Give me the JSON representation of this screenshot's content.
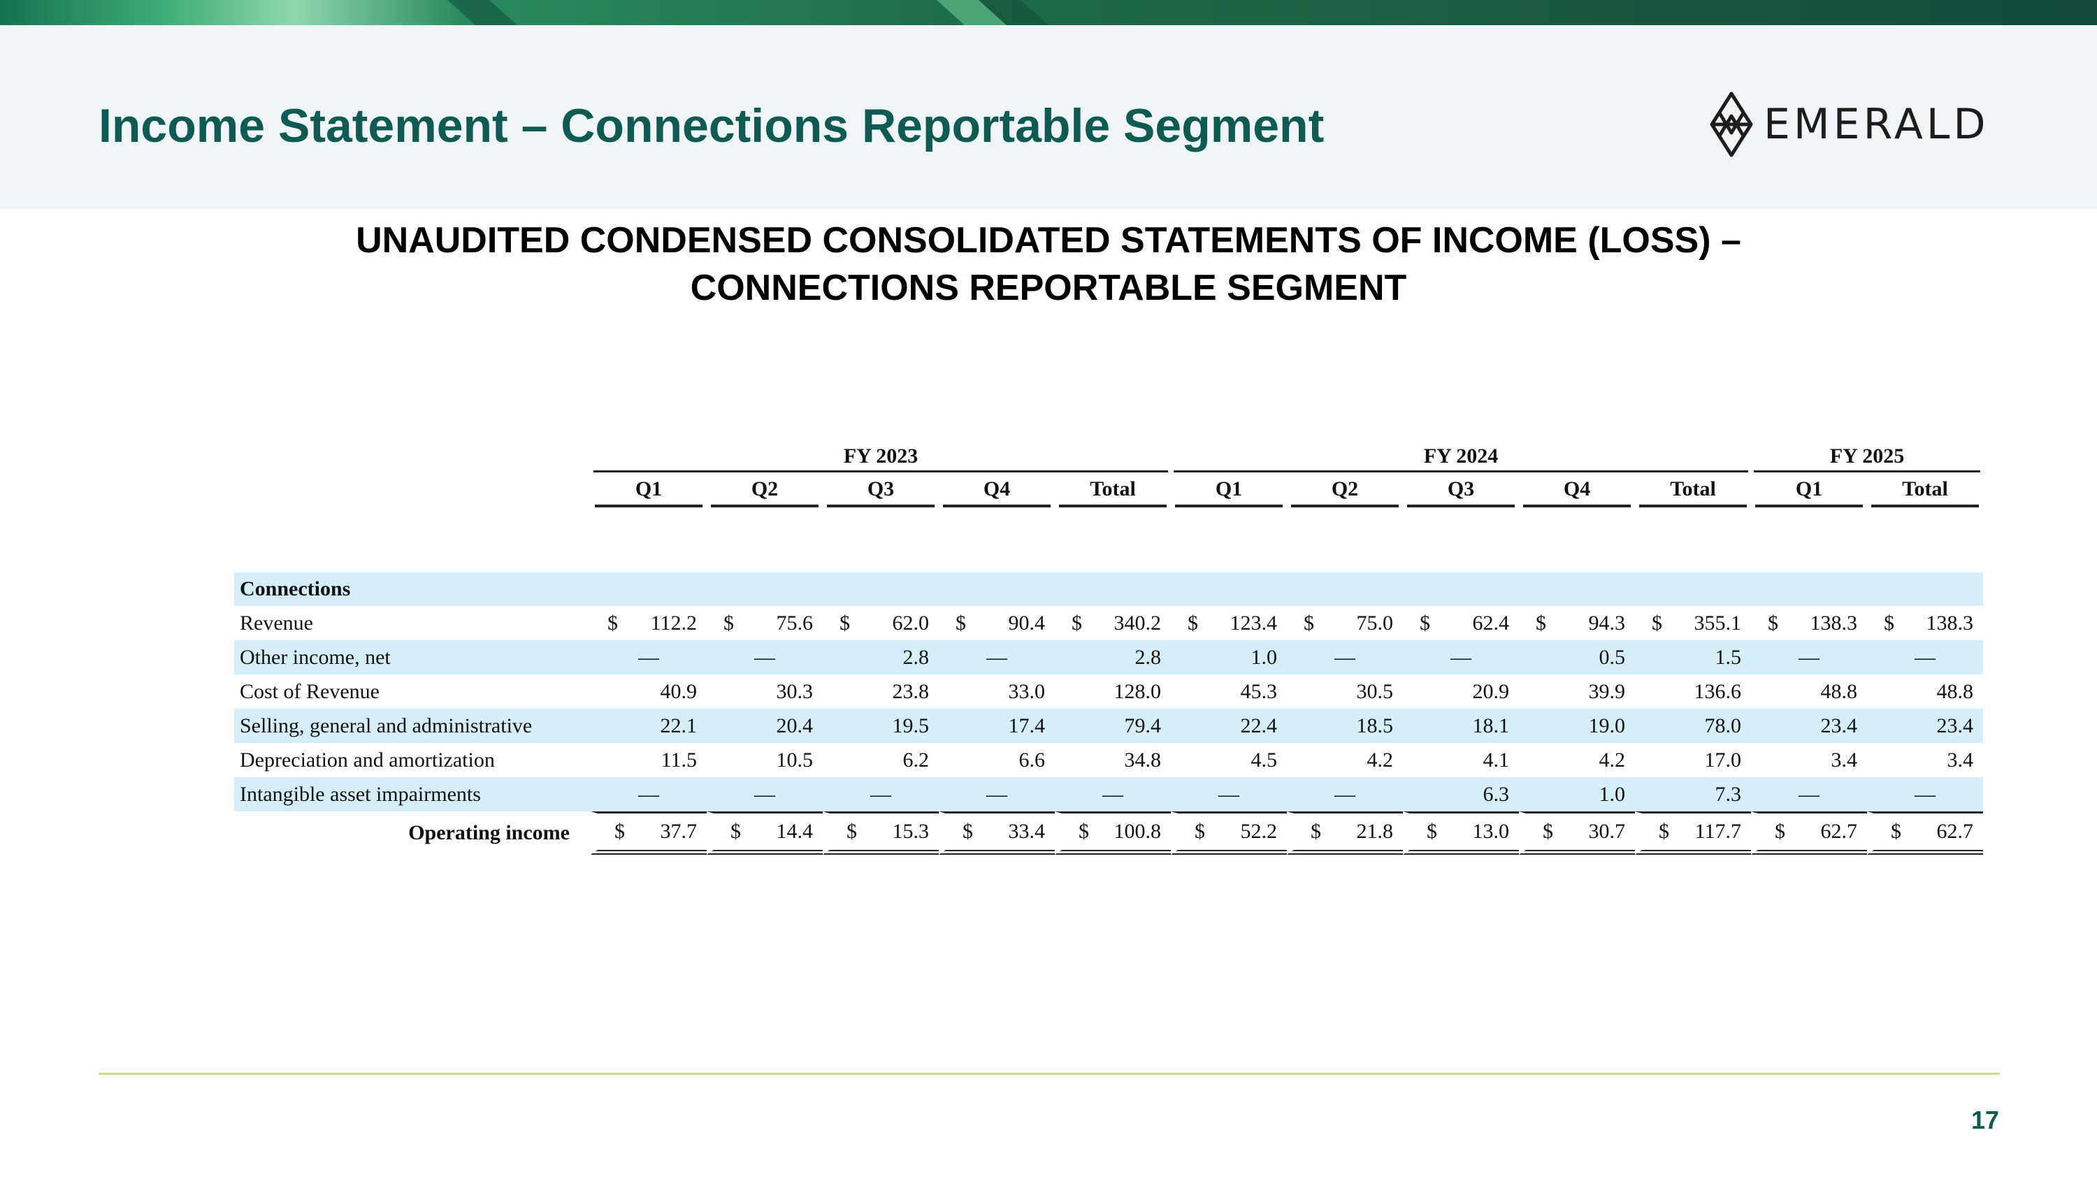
{
  "header": {
    "title": "Income Statement – Connections Reportable Segment",
    "logo_text": "EMERALD"
  },
  "subtitle": {
    "line1": "UNAUDITED CONDENSED CONSOLIDATED STATEMENTS OF INCOME (LOSS) –",
    "line2": "CONNECTIONS REPORTABLE SEGMENT"
  },
  "table": {
    "fiscal_years": [
      "FY 2023",
      "FY 2024",
      "FY 2025"
    ],
    "columns": [
      "Q1",
      "Q2",
      "Q3",
      "Q4",
      "Total",
      "Q1",
      "Q2",
      "Q3",
      "Q4",
      "Total",
      "Q1",
      "Total"
    ],
    "section_label": "Connections",
    "currency_symbol": "$",
    "rows": [
      {
        "label": "Revenue",
        "values": [
          "112.2",
          "75.6",
          "62.0",
          "90.4",
          "340.2",
          "123.4",
          "75.0",
          "62.4",
          "94.3",
          "355.1",
          "138.3",
          "138.3"
        ]
      },
      {
        "label": "Other income, net",
        "values": [
          "—",
          "—",
          "2.8",
          "—",
          "2.8",
          "1.0",
          "—",
          "—",
          "0.5",
          "1.5",
          "—",
          "—"
        ]
      },
      {
        "label": "Cost of Revenue",
        "values": [
          "40.9",
          "30.3",
          "23.8",
          "33.0",
          "128.0",
          "45.3",
          "30.5",
          "20.9",
          "39.9",
          "136.6",
          "48.8",
          "48.8"
        ]
      },
      {
        "label": "Selling, general and administrative",
        "values": [
          "22.1",
          "20.4",
          "19.5",
          "17.4",
          "79.4",
          "22.4",
          "18.5",
          "18.1",
          "19.0",
          "78.0",
          "23.4",
          "23.4"
        ]
      },
      {
        "label": "Depreciation and amortization",
        "values": [
          "11.5",
          "10.5",
          "6.2",
          "6.6",
          "34.8",
          "4.5",
          "4.2",
          "4.1",
          "4.2",
          "17.0",
          "3.4",
          "3.4"
        ]
      },
      {
        "label": "Intangible asset impairments",
        "values": [
          "—",
          "—",
          "—",
          "—",
          "—",
          "—",
          "—",
          "6.3",
          "1.0",
          "7.3",
          "—",
          "—"
        ]
      }
    ],
    "total_row": {
      "label": "Operating income",
      "values": [
        "37.7",
        "14.4",
        "15.3",
        "33.4",
        "100.8",
        "52.2",
        "21.8",
        "13.0",
        "30.7",
        "117.7",
        "62.7",
        "62.7"
      ]
    }
  },
  "footer": {
    "page_number": "17"
  },
  "colors": {
    "title": "#0f5a52",
    "header_panel": "#eff5f8",
    "row_shade": "#d4eefa",
    "footer_rule": "#c3e08e"
  }
}
